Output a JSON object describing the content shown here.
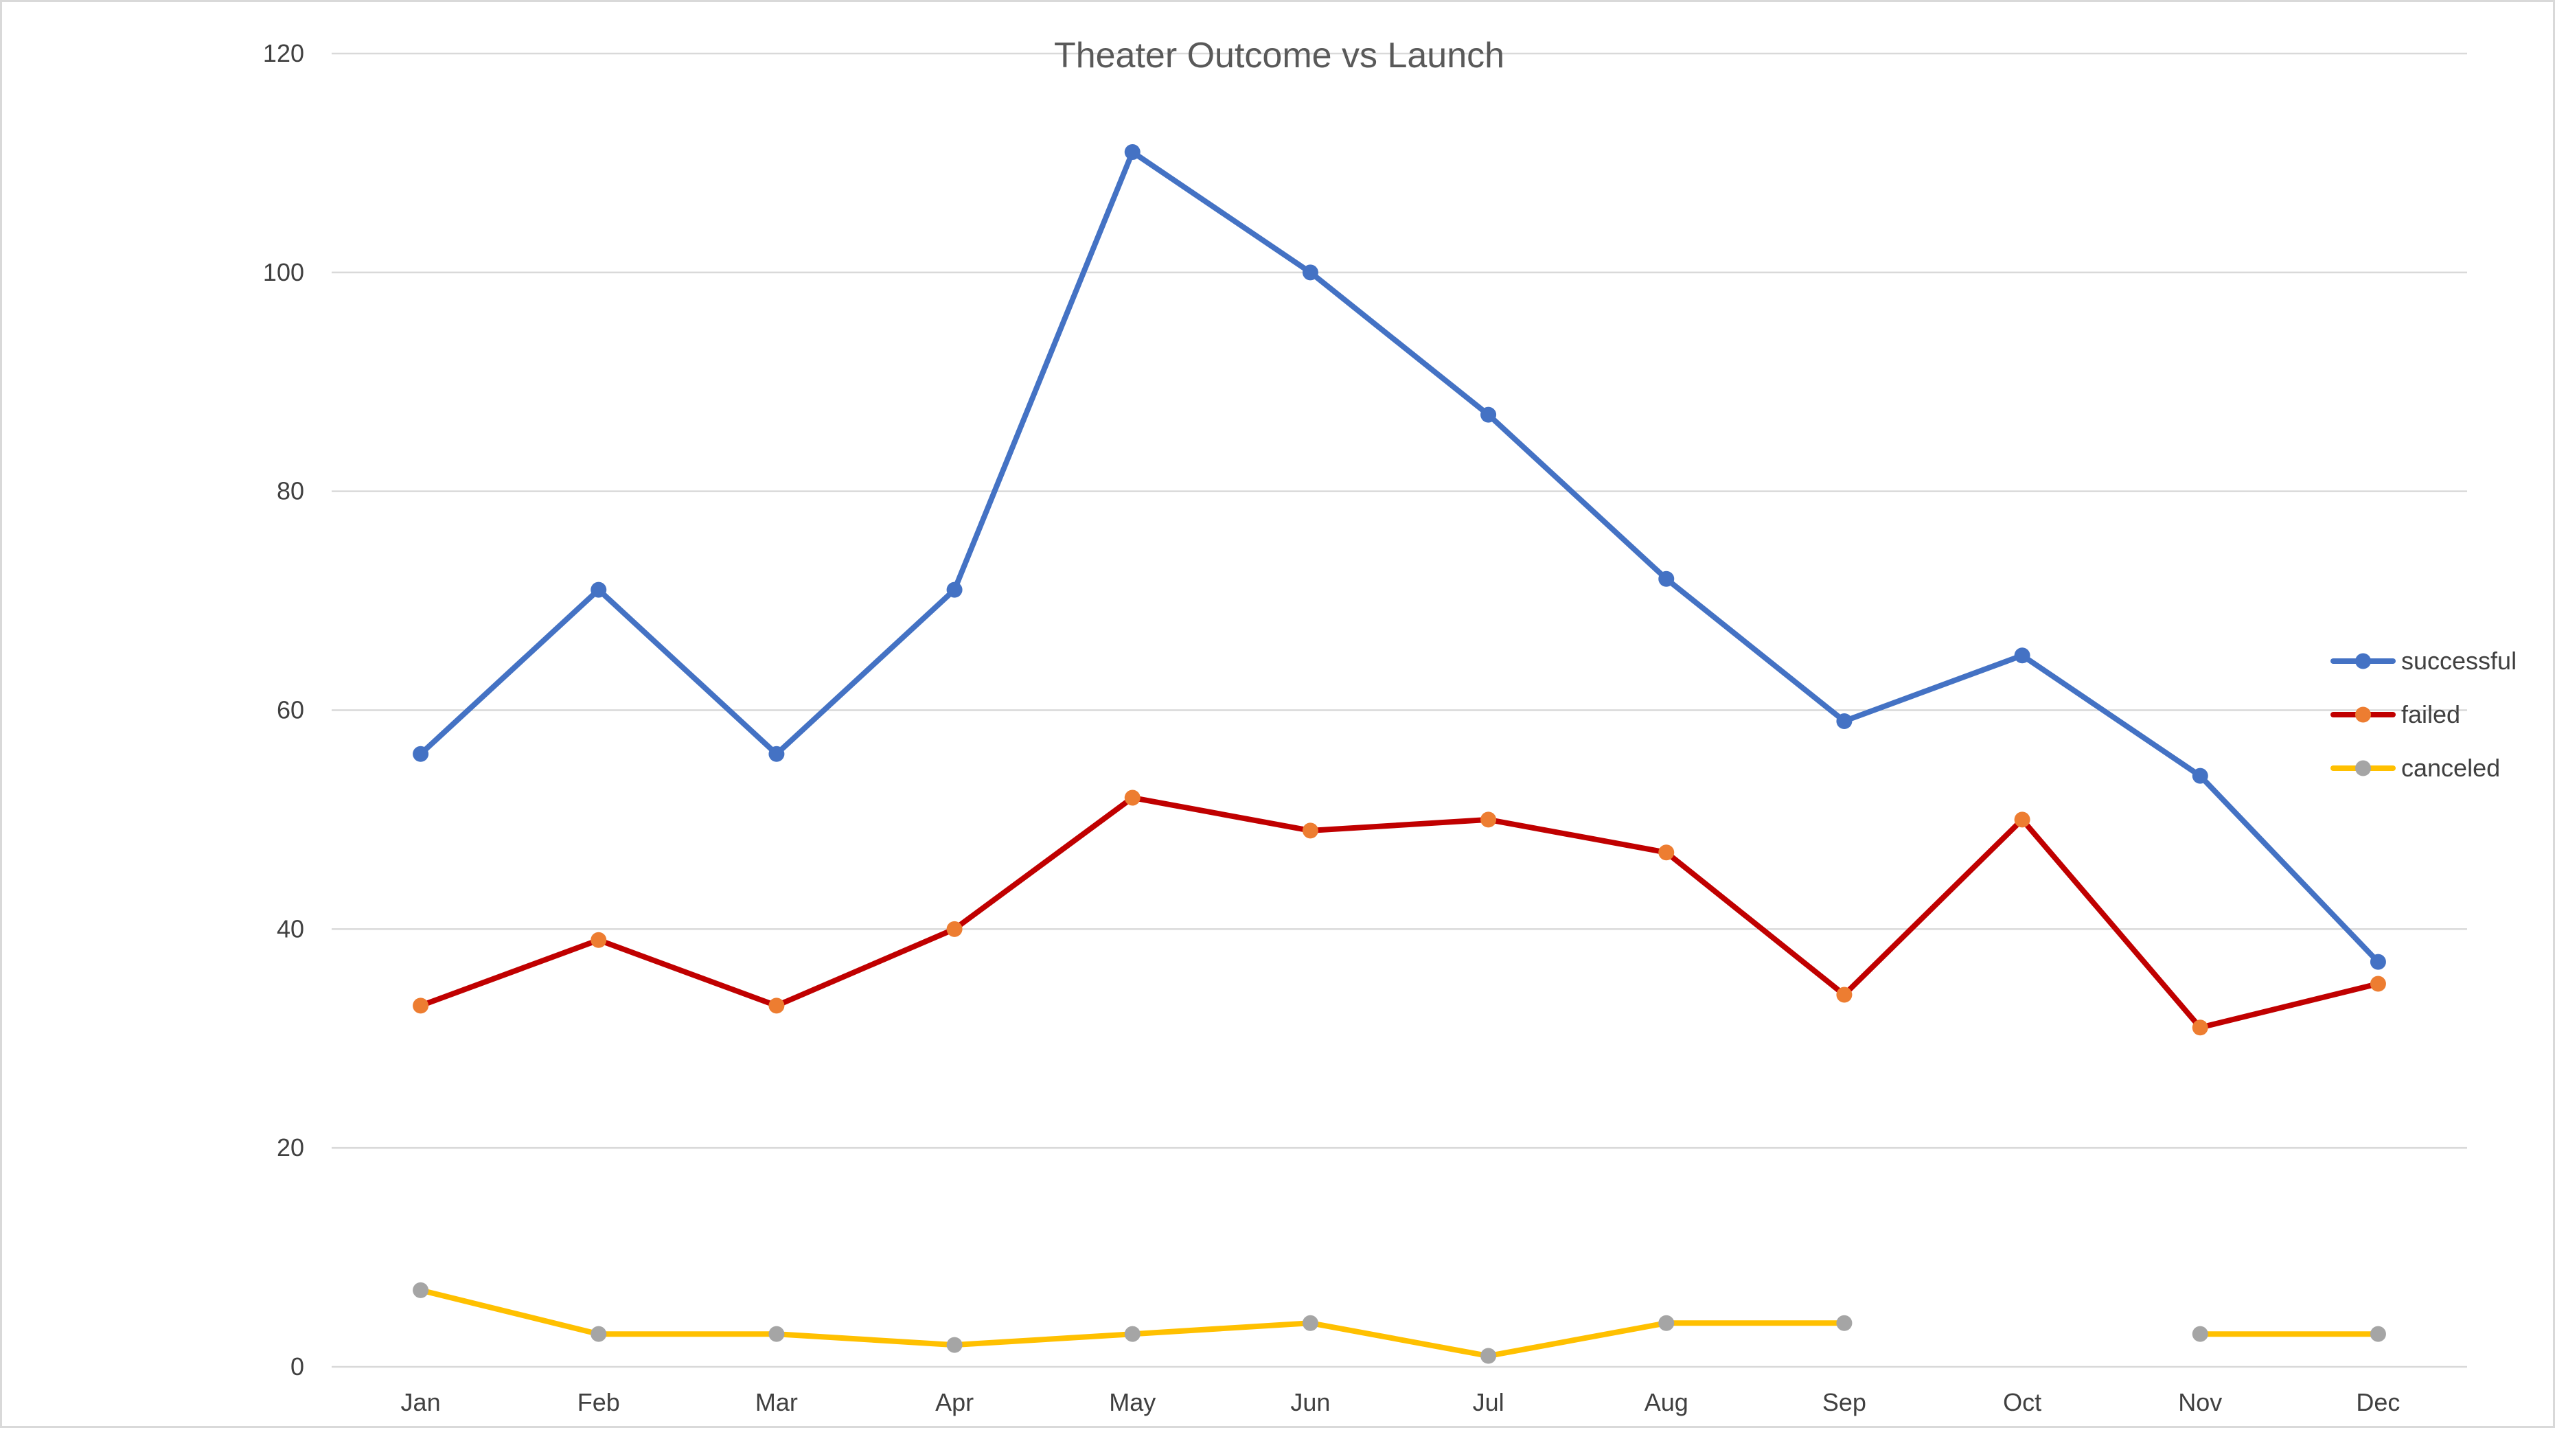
{
  "chart_data": {
    "type": "line",
    "title": "Theater Outcome vs Launch",
    "xlabel": "",
    "ylabel": "",
    "categories": [
      "Jan",
      "Feb",
      "Mar",
      "Apr",
      "May",
      "Jun",
      "Jul",
      "Aug",
      "Sep",
      "Oct",
      "Nov",
      "Dec"
    ],
    "ylim": [
      0,
      120
    ],
    "yticks": [
      0,
      20,
      40,
      60,
      80,
      100,
      120
    ],
    "grid": true,
    "legend_position": "right",
    "series": [
      {
        "name": "successful",
        "values": [
          56,
          71,
          56,
          71,
          111,
          100,
          87,
          72,
          59,
          65,
          54,
          37
        ],
        "line_color": "#4472c4",
        "marker_color": "#4472c4"
      },
      {
        "name": "failed",
        "values": [
          33,
          39,
          33,
          40,
          52,
          49,
          50,
          47,
          34,
          50,
          31,
          35
        ],
        "line_color": "#c00000",
        "marker_color": "#ed7d31"
      },
      {
        "name": "canceled",
        "values": [
          7,
          3,
          3,
          2,
          3,
          4,
          1,
          4,
          4,
          null,
          3,
          3
        ],
        "line_color": "#ffc000",
        "marker_color": "#a5a5a5"
      }
    ]
  }
}
